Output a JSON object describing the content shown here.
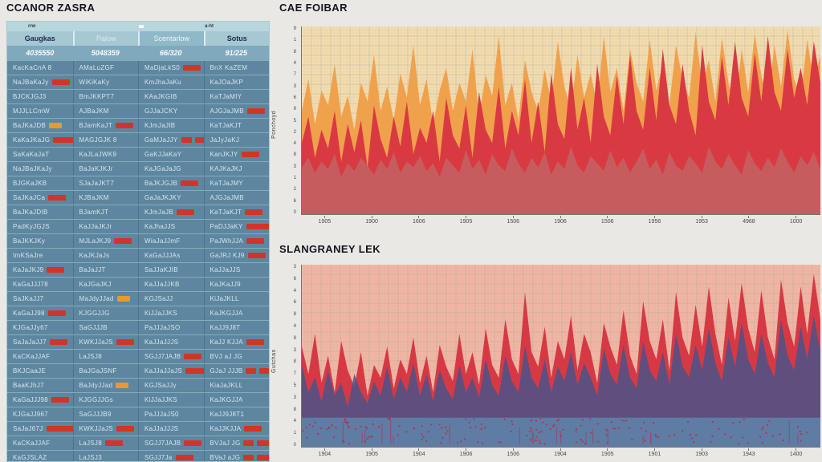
{
  "table": {
    "title": "CCANOR ZASRA",
    "meta_left": "rrw",
    "meta_right": "a-ht",
    "columns": [
      {
        "label": "Gaugkas"
      },
      {
        "label": "Palow"
      },
      {
        "label": "Scentarlow"
      },
      {
        "label": "Sotus"
      }
    ],
    "summary_row": [
      "4035550",
      "5048359",
      "66/320",
      "91/225"
    ],
    "chip_colors": {
      "red": "#d13529",
      "orange": "#e9992e"
    },
    "rows": [
      [
        [
          "KacKaCnA 8",
          null
        ],
        [
          "AMaLuZGF",
          null
        ],
        [
          "MaDjaLkS0",
          "r"
        ],
        [
          "BnX KaZEM",
          null
        ]
      ],
      [
        [
          "NaJBaKaJy",
          "r"
        ],
        [
          "WiKiKaKy",
          null
        ],
        [
          "KmJhaJaKu",
          null
        ],
        [
          "KaJOaJKP",
          null
        ]
      ],
      [
        [
          "BJCKJGJ3",
          null
        ],
        [
          "BmJKKPT7",
          null
        ],
        [
          "KAaJKGIB",
          null
        ],
        [
          "KaTJaMIY",
          null
        ]
      ],
      [
        [
          "MJJLLCmW",
          null
        ],
        [
          "AJBaJKM",
          null
        ],
        [
          "GJJaJCKY",
          null
        ],
        [
          "AJGJaJMB",
          "r"
        ]
      ],
      [
        [
          "BaJKaJDB",
          "o"
        ],
        [
          "BJamKaJT",
          "r"
        ],
        [
          "KJmJaJIB",
          null
        ],
        [
          "KaTJaKJT",
          null
        ]
      ],
      [
        [
          "KaKaJKaJG",
          "rw"
        ],
        [
          "MAGJGJK 8",
          null
        ],
        [
          "GaMJaJJY",
          "rr"
        ],
        [
          "JaJyJaKJ",
          null
        ]
      ],
      [
        [
          "SaKaKaJaT",
          null
        ],
        [
          "KaJLaJWK9",
          null
        ],
        [
          "GaKJJaKaY",
          null
        ],
        [
          "KanJKJY",
          "r"
        ]
      ],
      [
        [
          "NaJBaJKaJy",
          null
        ],
        [
          "BaJaKJKJr",
          null
        ],
        [
          "KaJGaJaJG",
          null
        ],
        [
          "KAJKaJKJ",
          null
        ]
      ],
      [
        [
          "BJGKaJKB",
          null
        ],
        [
          "SJaJaJKT7",
          null
        ],
        [
          "BaJKJGJB",
          "r"
        ],
        [
          "KaTJaJMY",
          null
        ]
      ],
      [
        [
          "SaJKaJCa",
          "r"
        ],
        [
          "KJBaJKM",
          null
        ],
        [
          "GaJaJKJKY",
          null
        ],
        [
          "AJGJaJMB",
          null
        ]
      ],
      [
        [
          "BaJKaJDIB",
          null
        ],
        [
          "BJamKJT",
          null
        ],
        [
          "KJmJaJB",
          "r"
        ],
        [
          "KaTJaKJT",
          "r"
        ]
      ],
      [
        [
          "PadKyJGJS",
          null
        ],
        [
          "KaJJaJKJr",
          null
        ],
        [
          "KaJhaJJS",
          null
        ],
        [
          "PaDJJaKY",
          "rw"
        ]
      ],
      [
        [
          "BaJKKJKy",
          null
        ],
        [
          "MJLaJKJ9",
          "r"
        ],
        [
          "WiaJaJJmF",
          null
        ],
        [
          "PaJWhJJA",
          "r"
        ]
      ],
      [
        [
          "ImKSaJre",
          null
        ],
        [
          "KaJKJaJs",
          null
        ],
        [
          "KaGaJJJAs",
          null
        ],
        [
          "GaJRJ KJ9",
          "r"
        ]
      ],
      [
        [
          "KaJaJKJ9",
          "r"
        ],
        [
          "BaJaJJT",
          null
        ],
        [
          "SaJJaKJIB",
          null
        ],
        [
          "KaJJaJJS",
          null
        ]
      ],
      [
        [
          "KaGaJJJ78",
          null
        ],
        [
          "KaJGaJKJ",
          null
        ],
        [
          "KaJJaJJKB",
          null
        ],
        [
          "KaJKaJJ9",
          null
        ]
      ],
      [
        [
          "SaJKaJJ7",
          null
        ],
        [
          "MaJdyJJad",
          "o"
        ],
        [
          "KGJSaJJ",
          null
        ],
        [
          "KiJaJKLL",
          null
        ]
      ],
      [
        [
          "KaGaJJ98",
          "r"
        ],
        [
          "KJGGJJG",
          null
        ],
        [
          "KiJJaJJKS",
          null
        ],
        [
          "KaJKGJJA",
          null
        ]
      ],
      [
        [
          "KJGaJJy67",
          null
        ],
        [
          "SaGJJJB",
          null
        ],
        [
          "PaJJJaJSO",
          null
        ],
        [
          "KaJJ9J8T",
          null
        ]
      ],
      [
        [
          "SaJaJaJJ7",
          "r"
        ],
        [
          "KWKJJaJS",
          "r"
        ],
        [
          "KaJJaJJJS",
          null
        ],
        [
          "KaJJ KJJA",
          "r"
        ]
      ],
      [
        [
          "KaCKaJJAF",
          null
        ],
        [
          "LaJSJ8",
          null
        ],
        [
          "SGJJ7JAJB",
          "r"
        ],
        [
          "BVJ aJ JG",
          null
        ]
      ],
      [
        [
          "BKJCaaJE",
          null
        ],
        [
          "BaJGaJSNF",
          null
        ],
        [
          "KaJJaJJaJS",
          "rw"
        ],
        [
          "GJaJ JJJB",
          "rr"
        ]
      ],
      [
        [
          "BaaKJhJ7",
          null
        ],
        [
          "BaJdyJJad",
          "o"
        ],
        [
          "KGJSaJJy",
          null
        ],
        [
          "KiaJaJKLL",
          null
        ]
      ],
      [
        [
          "KaGaJJJ98",
          "r"
        ],
        [
          "KJGGJJGs",
          null
        ],
        [
          "KiJJaJJKS",
          null
        ],
        [
          "KaJKGJJA",
          null
        ]
      ],
      [
        [
          "KJGaJJ967",
          null
        ],
        [
          "SaGJJJB9",
          null
        ],
        [
          "PaJJJaJS0",
          null
        ],
        [
          "KaJJ9J8T1",
          null
        ]
      ],
      [
        [
          "SaJaJ67J",
          "rw"
        ],
        [
          "KWKJJaJS",
          "r"
        ],
        [
          "KaJJaJJJS",
          null
        ],
        [
          "KaJJKJJA",
          "r"
        ]
      ],
      [
        [
          "KaCKaJJAF",
          null
        ],
        [
          "LaJSJ8",
          "r"
        ],
        [
          "SGJJ7JAJB",
          "r"
        ],
        [
          "BVJaJ JG",
          "rr"
        ]
      ],
      [
        [
          "KaGJSLAZ",
          null
        ],
        [
          "LaJSJ3",
          null
        ],
        [
          "SGJJ7Ja",
          "r"
        ],
        [
          "BVaJ aJG",
          "rr"
        ]
      ]
    ]
  },
  "chart_data": [
    {
      "type": "area",
      "title": "CAE FOIBAR",
      "ylabel": "Ponchoyd",
      "x_ticks": [
        "1905",
        "1900",
        "1606",
        "1905",
        "1506",
        "1906",
        "1506",
        "1956",
        "1953",
        "4968",
        "1000"
      ],
      "y_ticks": [
        "9",
        "1",
        "8",
        "4",
        "7",
        "3",
        "6",
        "9",
        "5",
        "2",
        "4",
        "8",
        "3",
        "1",
        "2",
        "6",
        "0"
      ],
      "plot_bg": "#f3dcae",
      "grid_color": "#8e9aa0",
      "values_unit": "fraction_of_plot_height",
      "series": [
        {
          "name": "orange-band",
          "color": "#f0a14c",
          "opacity": 1,
          "values": [
            0.55,
            0.72,
            0.48,
            0.66,
            0.58,
            0.8,
            0.52,
            0.63,
            0.45,
            0.7,
            0.6,
            0.85,
            0.55,
            0.68,
            0.5,
            0.75,
            0.62,
            0.9,
            0.58,
            0.72,
            0.48,
            0.66,
            0.78,
            0.55,
            0.7,
            0.6,
            0.88,
            0.52,
            0.74,
            0.63,
            0.95,
            0.58,
            0.7,
            0.5,
            0.82,
            0.65,
            0.55,
            0.77,
            0.6,
            0.92,
            0.68,
            0.55,
            0.85,
            0.62,
            0.75,
            0.58,
            0.95,
            0.65,
            0.78,
            0.55,
            0.88,
            0.7,
            0.6,
            0.93,
            0.66,
            0.8,
            0.58,
            0.9,
            0.72,
            0.62,
            0.97,
            0.68,
            0.82,
            0.6,
            0.94,
            0.7,
            0.55,
            0.88,
            0.65,
            0.96,
            0.74,
            0.6,
            0.9,
            0.68,
            0.98,
            0.72,
            0.62,
            0.93,
            0.7,
            0.85
          ]
        },
        {
          "name": "red-band",
          "color": "#d93a41",
          "opacity": 1,
          "values": [
            0.38,
            0.52,
            0.3,
            0.45,
            0.35,
            0.55,
            0.28,
            0.48,
            0.33,
            0.5,
            0.25,
            0.58,
            0.4,
            0.3,
            0.52,
            0.36,
            0.6,
            0.32,
            0.46,
            0.38,
            0.55,
            0.28,
            0.62,
            0.42,
            0.35,
            0.58,
            0.3,
            0.65,
            0.45,
            0.38,
            0.68,
            0.35,
            0.55,
            0.42,
            0.72,
            0.38,
            0.6,
            0.33,
            0.75,
            0.48,
            0.4,
            0.78,
            0.45,
            0.62,
            0.38,
            0.8,
            0.52,
            0.42,
            0.74,
            0.48,
            0.85,
            0.55,
            0.45,
            0.78,
            0.5,
            0.88,
            0.58,
            0.48,
            0.8,
            0.55,
            0.42,
            0.9,
            0.6,
            0.5,
            0.84,
            0.58,
            0.92,
            0.62,
            0.52,
            0.86,
            0.6,
            0.95,
            0.65,
            0.55,
            0.88,
            0.62,
            0.78,
            0.58,
            0.92,
            0.7
          ]
        },
        {
          "name": "mauve-band",
          "color": "#b87878",
          "opacity": 0.55,
          "values": [
            0.25,
            0.3,
            0.22,
            0.28,
            0.24,
            0.32,
            0.2,
            0.27,
            0.23,
            0.3,
            0.26,
            0.21,
            0.29,
            0.24,
            0.33,
            0.22,
            0.28,
            0.25,
            0.31,
            0.23,
            0.27,
            0.2,
            0.3,
            0.26,
            0.22,
            0.34,
            0.24,
            0.29,
            0.21,
            0.32,
            0.26,
            0.23,
            0.35,
            0.27,
            0.22,
            0.3,
            0.25,
            0.33,
            0.21,
            0.28,
            0.24,
            0.36,
            0.26,
            0.22,
            0.31,
            0.27,
            0.23,
            0.34,
            0.25,
            0.3,
            0.22,
            0.28,
            0.35,
            0.24,
            0.29,
            0.21,
            0.33,
            0.26,
            0.23,
            0.31,
            0.27,
            0.22,
            0.36,
            0.28,
            0.24,
            0.32,
            0.26,
            0.21,
            0.34,
            0.27,
            0.23,
            0.3,
            0.25,
            0.35,
            0.28,
            0.22,
            0.31,
            0.26,
            0.33,
            0.24
          ]
        }
      ]
    },
    {
      "type": "area",
      "title": "SLANGRANEY LEK",
      "ylabel": "Gutchas",
      "x_ticks": [
        "1904",
        "1905",
        "1904",
        "1906",
        "1506",
        "1904",
        "1905",
        "1901",
        "1903",
        "1943",
        "1400"
      ],
      "y_ticks": [
        "3",
        "6",
        "4",
        "6",
        "8",
        "4",
        "9",
        "3",
        "8",
        "7",
        "5",
        "3",
        "8",
        "4",
        "1",
        "0"
      ],
      "plot_bg": "#f1b6a3",
      "grid_color": "#8e9aa0",
      "values_unit": "fraction_of_plot_height",
      "series": [
        {
          "name": "red-band",
          "color": "#d63944",
          "opacity": 1,
          "values": [
            0.55,
            0.4,
            0.62,
            0.35,
            0.5,
            0.3,
            0.58,
            0.42,
            0.33,
            0.52,
            0.28,
            0.45,
            0.38,
            0.55,
            0.32,
            0.48,
            0.4,
            0.6,
            0.35,
            0.5,
            0.3,
            0.56,
            0.44,
            0.36,
            0.62,
            0.4,
            0.52,
            0.34,
            0.65,
            0.45,
            0.38,
            0.7,
            0.48,
            0.4,
            0.85,
            0.52,
            0.44,
            0.66,
            0.38,
            0.58,
            0.48,
            0.72,
            0.42,
            0.62,
            0.52,
            0.35,
            0.68,
            0.55,
            0.45,
            0.75,
            0.5,
            0.4,
            0.8,
            0.58,
            0.48,
            0.7,
            0.42,
            0.85,
            0.6,
            0.5,
            0.78,
            0.55,
            0.88,
            0.62,
            0.45,
            0.82,
            0.58,
            0.9,
            0.65,
            0.52,
            0.86,
            0.6,
            0.48,
            0.92,
            0.68,
            0.55,
            0.88,
            0.62,
            0.95,
            0.7
          ]
        },
        {
          "name": "blue-band",
          "color": "#49538a",
          "opacity": 0.85,
          "values": [
            0.45,
            0.3,
            0.38,
            0.25,
            0.42,
            0.28,
            0.35,
            0.22,
            0.4,
            0.3,
            0.24,
            0.36,
            0.28,
            0.44,
            0.26,
            0.38,
            0.3,
            0.46,
            0.28,
            0.4,
            0.25,
            0.42,
            0.32,
            0.26,
            0.45,
            0.3,
            0.38,
            0.27,
            0.48,
            0.34,
            0.28,
            0.5,
            0.36,
            0.3,
            0.55,
            0.38,
            0.32,
            0.48,
            0.3,
            0.44,
            0.36,
            0.52,
            0.34,
            0.46,
            0.38,
            0.28,
            0.54,
            0.4,
            0.34,
            0.56,
            0.38,
            0.32,
            0.58,
            0.42,
            0.36,
            0.52,
            0.34,
            0.62,
            0.44,
            0.38,
            0.56,
            0.42,
            0.65,
            0.46,
            0.36,
            0.6,
            0.44,
            0.68,
            0.48,
            0.4,
            0.62,
            0.46,
            0.38,
            0.7,
            0.5,
            0.42,
            0.66,
            0.48,
            0.72,
            0.52
          ]
        }
      ],
      "bottom_band": {
        "color": "#5f81a8",
        "opacity": 0.9,
        "height_fraction": 0.16
      },
      "speckles": {
        "color": "#b62d50",
        "count": 170
      }
    }
  ]
}
